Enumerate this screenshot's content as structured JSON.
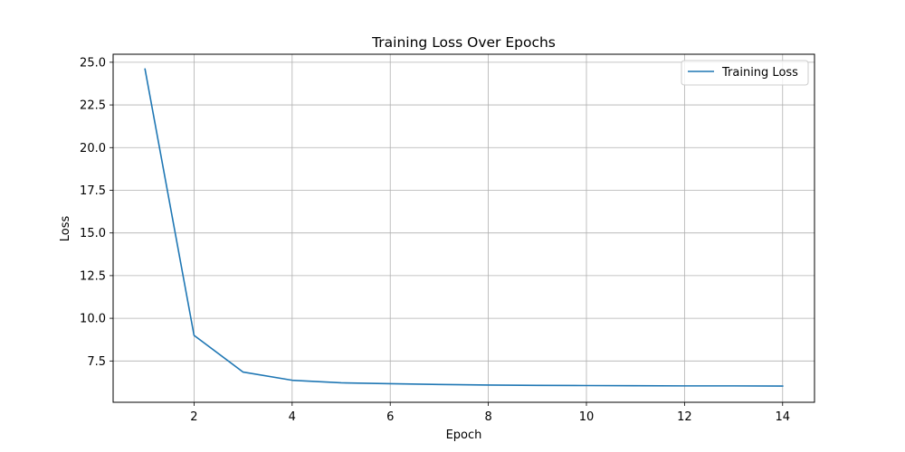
{
  "chart_data": {
    "type": "line",
    "title": "Training Loss Over Epochs",
    "xlabel": "Epoch",
    "ylabel": "Loss",
    "xlim": [
      0.35,
      14.65
    ],
    "ylim": [
      5.08,
      25.47
    ],
    "xticks": [
      2,
      4,
      6,
      8,
      10,
      12,
      14
    ],
    "xtick_labels": [
      "2",
      "4",
      "6",
      "8",
      "10",
      "12",
      "14"
    ],
    "yticks": [
      7.5,
      10.0,
      12.5,
      15.0,
      17.5,
      20.0,
      22.5,
      25.0
    ],
    "ytick_labels": [
      "7.5",
      "10.0",
      "12.5",
      "15.0",
      "17.5",
      "20.0",
      "22.5",
      "25.0"
    ],
    "grid": true,
    "legend_position": "top-right",
    "series": [
      {
        "name": "Training Loss",
        "color": "#1f77b4",
        "x": [
          1,
          2,
          3,
          4,
          5,
          6,
          7,
          8,
          9,
          10,
          11,
          12,
          13,
          14
        ],
        "y": [
          24.6,
          9.0,
          6.85,
          6.37,
          6.22,
          6.17,
          6.12,
          6.09,
          6.07,
          6.06,
          6.05,
          6.04,
          6.04,
          6.03
        ]
      }
    ]
  }
}
